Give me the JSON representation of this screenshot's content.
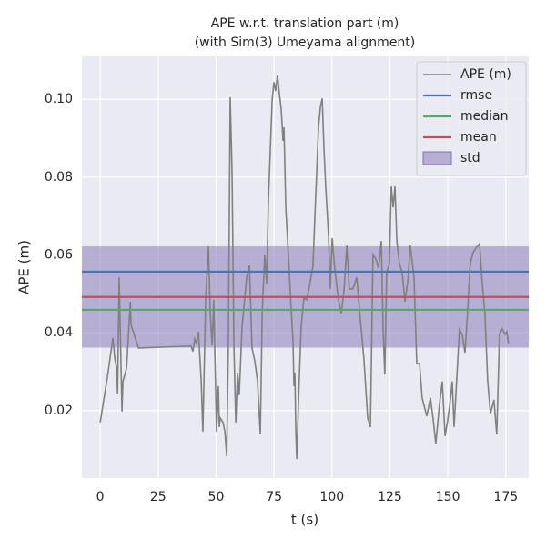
{
  "chart_data": {
    "type": "line",
    "title": [
      "APE w.r.t. translation part (m)",
      "(with Sim(3) Umeyama alignment)"
    ],
    "xlabel": "t (s)",
    "ylabel": "APE (m)",
    "x": [
      0,
      3.1,
      5.5,
      6.3,
      7.1,
      7.5,
      8.2,
      9.4,
      9.8,
      11.4,
      13,
      13.3,
      16.5,
      39.2,
      40,
      40.8,
      41.6,
      42.4,
      43.6,
      44.3,
      45.5,
      46.7,
      47.5,
      48.3,
      49,
      50.2,
      51,
      51.4,
      51.8,
      53,
      53.8,
      54.6,
      55.3,
      56.1,
      56.9,
      57.7,
      58.5,
      59.3,
      60,
      61.2,
      62,
      63.2,
      64.4,
      65.5,
      66.7,
      67.9,
      69.1,
      69.9,
      71,
      71.8,
      72.6,
      73.4,
      74.2,
      75,
      75.7,
      76.5,
      77.3,
      78.1,
      78.9,
      79.3,
      80.1,
      81.2,
      82.4,
      83.2,
      83.6,
      84,
      84.4,
      84.8,
      85.6,
      86.7,
      87.9,
      89.1,
      90.3,
      91.8,
      93,
      94.2,
      95,
      95.8,
      96.5,
      97.3,
      98.5,
      99.3,
      100.1,
      101.2,
      102.8,
      104,
      105.2,
      106.4,
      107.5,
      109.1,
      110.7,
      112.2,
      113.8,
      115.4,
      116.6,
      117.7,
      118.9,
      120.1,
      121.3,
      122.1,
      122.8,
      123.6,
      124.8,
      125.6,
      126.4,
      127.2,
      128,
      129.1,
      130.3,
      131.5,
      132.7,
      133.8,
      135.4,
      136.6,
      137.8,
      138.9,
      140.9,
      142.5,
      143.6,
      144.8,
      146.4,
      147.6,
      148.8,
      149.9,
      151.1,
      151.9,
      152.7,
      154.2,
      155,
      156.2,
      157.4,
      158.6,
      159.7,
      160.9,
      162.1,
      163.7,
      164.8,
      166,
      167.2,
      168.4,
      169.9,
      171.1,
      172.3,
      173.5,
      174.6,
      175.4,
      176.2
    ],
    "series": [
      {
        "name": "APE (m)",
        "color": "#808080",
        "values": [
          0.017,
          0.0286,
          0.0387,
          0.0333,
          0.031,
          0.0244,
          0.0543,
          0.0198,
          0.0275,
          0.031,
          0.048,
          0.0421,
          0.0361,
          0.0366,
          0.0352,
          0.0384,
          0.0373,
          0.0403,
          0.0275,
          0.0146,
          0.0485,
          0.0622,
          0.045,
          0.0368,
          0.0485,
          0.0146,
          0.0263,
          0.0158,
          0.0181,
          0.017,
          0.0146,
          0.0083,
          0.0368,
          0.1005,
          0.0811,
          0.0368,
          0.017,
          0.0298,
          0.024,
          0.0415,
          0.0466,
          0.0543,
          0.0573,
          0.0361,
          0.0328,
          0.0275,
          0.0139,
          0.045,
          0.0601,
          0.0527,
          0.0741,
          0.0869,
          0.0998,
          0.1044,
          0.1021,
          0.1061,
          0.1016,
          0.0974,
          0.0893,
          0.0928,
          0.0718,
          0.0601,
          0.0461,
          0.038,
          0.0263,
          0.0298,
          0.0151,
          0.0076,
          0.0228,
          0.0415,
          0.0489,
          0.0485,
          0.052,
          0.0571,
          0.0753,
          0.0928,
          0.0979,
          0.1002,
          0.0881,
          0.0776,
          0.0652,
          0.0513,
          0.0643,
          0.0566,
          0.0485,
          0.045,
          0.0508,
          0.0624,
          0.0513,
          0.0513,
          0.0543,
          0.0438,
          0.0333,
          0.0181,
          0.0158,
          0.0601,
          0.059,
          0.0566,
          0.0636,
          0.0403,
          0.0293,
          0.0555,
          0.0578,
          0.0776,
          0.0722,
          0.0776,
          0.0636,
          0.0578,
          0.0555,
          0.048,
          0.0531,
          0.0624,
          0.0543,
          0.0321,
          0.0321,
          0.0233,
          0.0186,
          0.0233,
          0.0181,
          0.0116,
          0.0216,
          0.0275,
          0.0135,
          0.0174,
          0.0228,
          0.0275,
          0.0158,
          0.0321,
          0.0408,
          0.0396,
          0.0349,
          0.0461,
          0.0578,
          0.0606,
          0.0618,
          0.0629,
          0.0531,
          0.045,
          0.0275,
          0.0193,
          0.0228,
          0.0139,
          0.0396,
          0.041,
          0.0396,
          0.0403,
          0.0373
        ]
      }
    ],
    "reference_lines": [
      {
        "name": "rmse",
        "color": "#4c72b0",
        "value": 0.0557
      },
      {
        "name": "median",
        "color": "#55a868",
        "value": 0.0459
      },
      {
        "name": "mean",
        "color": "#c44e52",
        "value": 0.0492
      }
    ],
    "std_band": {
      "name": "std",
      "color": "#8172b3",
      "value": 0.013
    },
    "xlim": [
      -7.9,
      184.9
    ],
    "ylim": [
      0.0027,
      0.111
    ],
    "xticks": [
      0,
      25,
      50,
      75,
      100,
      125,
      150,
      175
    ],
    "yticks": [
      0.02,
      0.04,
      0.06,
      0.08,
      {
        "value": 0.1,
        "label": "0.10"
      }
    ],
    "grid": true,
    "legend": "upper right"
  }
}
